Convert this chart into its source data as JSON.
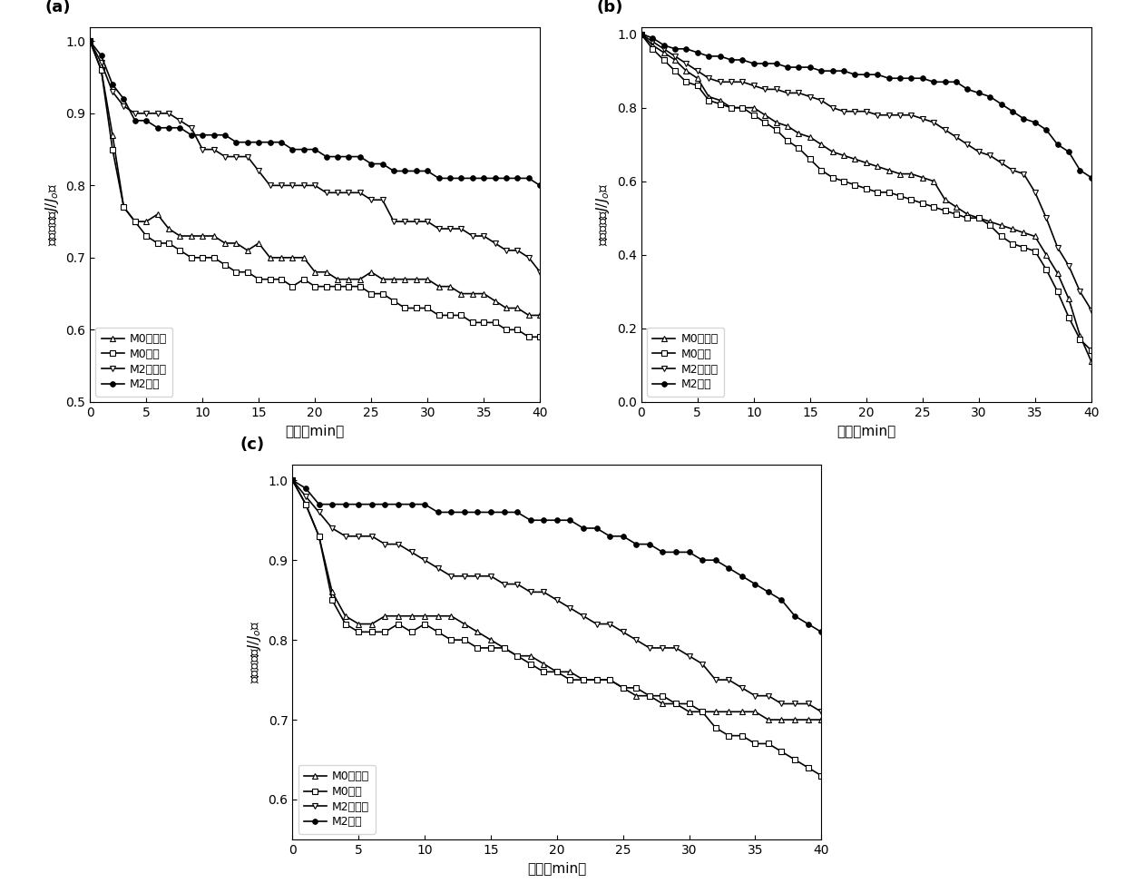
{
  "panels": [
    {
      "label": "(a)",
      "ylim": [
        0.5,
        1.02
      ],
      "yticks": [
        0.5,
        0.6,
        0.7,
        0.8,
        0.9,
        1.0
      ],
      "legend_loc": "lower left",
      "series": {
        "M0无光照": {
          "marker": "^",
          "filled": false,
          "x": [
            0,
            1,
            2,
            3,
            4,
            5,
            6,
            7,
            8,
            9,
            10,
            11,
            12,
            13,
            14,
            15,
            16,
            17,
            18,
            19,
            20,
            21,
            22,
            23,
            24,
            25,
            26,
            27,
            28,
            29,
            30,
            31,
            32,
            33,
            34,
            35,
            36,
            37,
            38,
            39,
            40
          ],
          "y": [
            1.0,
            0.96,
            0.87,
            0.77,
            0.75,
            0.75,
            0.76,
            0.74,
            0.73,
            0.73,
            0.73,
            0.73,
            0.72,
            0.72,
            0.71,
            0.72,
            0.7,
            0.7,
            0.7,
            0.7,
            0.68,
            0.68,
            0.67,
            0.67,
            0.67,
            0.68,
            0.67,
            0.67,
            0.67,
            0.67,
            0.67,
            0.66,
            0.66,
            0.65,
            0.65,
            0.65,
            0.64,
            0.63,
            0.63,
            0.62,
            0.62
          ]
        },
        "M0光照": {
          "marker": "s",
          "filled": false,
          "x": [
            0,
            1,
            2,
            3,
            4,
            5,
            6,
            7,
            8,
            9,
            10,
            11,
            12,
            13,
            14,
            15,
            16,
            17,
            18,
            19,
            20,
            21,
            22,
            23,
            24,
            25,
            26,
            27,
            28,
            29,
            30,
            31,
            32,
            33,
            34,
            35,
            36,
            37,
            38,
            39,
            40
          ],
          "y": [
            1.0,
            0.96,
            0.85,
            0.77,
            0.75,
            0.73,
            0.72,
            0.72,
            0.71,
            0.7,
            0.7,
            0.7,
            0.69,
            0.68,
            0.68,
            0.67,
            0.67,
            0.67,
            0.66,
            0.67,
            0.66,
            0.66,
            0.66,
            0.66,
            0.66,
            0.65,
            0.65,
            0.64,
            0.63,
            0.63,
            0.63,
            0.62,
            0.62,
            0.62,
            0.61,
            0.61,
            0.61,
            0.6,
            0.6,
            0.59,
            0.59
          ]
        },
        "M2无光照": {
          "marker": "v",
          "filled": false,
          "x": [
            0,
            1,
            2,
            3,
            4,
            5,
            6,
            7,
            8,
            9,
            10,
            11,
            12,
            13,
            14,
            15,
            16,
            17,
            18,
            19,
            20,
            21,
            22,
            23,
            24,
            25,
            26,
            27,
            28,
            29,
            30,
            31,
            32,
            33,
            34,
            35,
            36,
            37,
            38,
            39,
            40
          ],
          "y": [
            1.0,
            0.97,
            0.93,
            0.91,
            0.9,
            0.9,
            0.9,
            0.9,
            0.89,
            0.88,
            0.85,
            0.85,
            0.84,
            0.84,
            0.84,
            0.82,
            0.8,
            0.8,
            0.8,
            0.8,
            0.8,
            0.79,
            0.79,
            0.79,
            0.79,
            0.78,
            0.78,
            0.75,
            0.75,
            0.75,
            0.75,
            0.74,
            0.74,
            0.74,
            0.73,
            0.73,
            0.72,
            0.71,
            0.71,
            0.7,
            0.68
          ]
        },
        "M2光照": {
          "marker": "o",
          "filled": true,
          "x": [
            0,
            1,
            2,
            3,
            4,
            5,
            6,
            7,
            8,
            9,
            10,
            11,
            12,
            13,
            14,
            15,
            16,
            17,
            18,
            19,
            20,
            21,
            22,
            23,
            24,
            25,
            26,
            27,
            28,
            29,
            30,
            31,
            32,
            33,
            34,
            35,
            36,
            37,
            38,
            39,
            40
          ],
          "y": [
            1.0,
            0.98,
            0.94,
            0.92,
            0.89,
            0.89,
            0.88,
            0.88,
            0.88,
            0.87,
            0.87,
            0.87,
            0.87,
            0.86,
            0.86,
            0.86,
            0.86,
            0.86,
            0.85,
            0.85,
            0.85,
            0.84,
            0.84,
            0.84,
            0.84,
            0.83,
            0.83,
            0.82,
            0.82,
            0.82,
            0.82,
            0.81,
            0.81,
            0.81,
            0.81,
            0.81,
            0.81,
            0.81,
            0.81,
            0.81,
            0.8
          ]
        }
      }
    },
    {
      "label": "(b)",
      "ylim": [
        0.0,
        1.02
      ],
      "yticks": [
        0.0,
        0.2,
        0.4,
        0.6,
        0.8,
        1.0
      ],
      "legend_loc": "lower left",
      "series": {
        "M0无光照": {
          "marker": "^",
          "filled": false,
          "x": [
            0,
            1,
            2,
            3,
            4,
            5,
            6,
            7,
            8,
            9,
            10,
            11,
            12,
            13,
            14,
            15,
            16,
            17,
            18,
            19,
            20,
            21,
            22,
            23,
            24,
            25,
            26,
            27,
            28,
            29,
            30,
            31,
            32,
            33,
            34,
            35,
            36,
            37,
            38,
            39,
            40
          ],
          "y": [
            1.0,
            0.97,
            0.95,
            0.93,
            0.9,
            0.88,
            0.83,
            0.82,
            0.8,
            0.8,
            0.8,
            0.78,
            0.76,
            0.75,
            0.73,
            0.72,
            0.7,
            0.68,
            0.67,
            0.66,
            0.65,
            0.64,
            0.63,
            0.62,
            0.62,
            0.61,
            0.6,
            0.55,
            0.53,
            0.51,
            0.5,
            0.49,
            0.48,
            0.47,
            0.46,
            0.45,
            0.4,
            0.35,
            0.28,
            0.18,
            0.11
          ]
        },
        "M0光照": {
          "marker": "s",
          "filled": false,
          "x": [
            0,
            1,
            2,
            3,
            4,
            5,
            6,
            7,
            8,
            9,
            10,
            11,
            12,
            13,
            14,
            15,
            16,
            17,
            18,
            19,
            20,
            21,
            22,
            23,
            24,
            25,
            26,
            27,
            28,
            29,
            30,
            31,
            32,
            33,
            34,
            35,
            36,
            37,
            38,
            39,
            40
          ],
          "y": [
            1.0,
            0.96,
            0.93,
            0.9,
            0.87,
            0.86,
            0.82,
            0.81,
            0.8,
            0.8,
            0.78,
            0.76,
            0.74,
            0.71,
            0.69,
            0.66,
            0.63,
            0.61,
            0.6,
            0.59,
            0.58,
            0.57,
            0.57,
            0.56,
            0.55,
            0.54,
            0.53,
            0.52,
            0.51,
            0.5,
            0.5,
            0.48,
            0.45,
            0.43,
            0.42,
            0.41,
            0.36,
            0.3,
            0.23,
            0.17,
            0.14
          ]
        },
        "M2无光照": {
          "marker": "v",
          "filled": false,
          "x": [
            0,
            1,
            2,
            3,
            4,
            5,
            6,
            7,
            8,
            9,
            10,
            11,
            12,
            13,
            14,
            15,
            16,
            17,
            18,
            19,
            20,
            21,
            22,
            23,
            24,
            25,
            26,
            27,
            28,
            29,
            30,
            31,
            32,
            33,
            34,
            35,
            36,
            37,
            38,
            39,
            40
          ],
          "y": [
            1.0,
            0.98,
            0.96,
            0.94,
            0.92,
            0.9,
            0.88,
            0.87,
            0.87,
            0.87,
            0.86,
            0.85,
            0.85,
            0.84,
            0.84,
            0.83,
            0.82,
            0.8,
            0.79,
            0.79,
            0.79,
            0.78,
            0.78,
            0.78,
            0.78,
            0.77,
            0.76,
            0.74,
            0.72,
            0.7,
            0.68,
            0.67,
            0.65,
            0.63,
            0.62,
            0.57,
            0.5,
            0.42,
            0.37,
            0.3,
            0.25
          ]
        },
        "M2光照": {
          "marker": "o",
          "filled": true,
          "x": [
            0,
            1,
            2,
            3,
            4,
            5,
            6,
            7,
            8,
            9,
            10,
            11,
            12,
            13,
            14,
            15,
            16,
            17,
            18,
            19,
            20,
            21,
            22,
            23,
            24,
            25,
            26,
            27,
            28,
            29,
            30,
            31,
            32,
            33,
            34,
            35,
            36,
            37,
            38,
            39,
            40
          ],
          "y": [
            1.0,
            0.99,
            0.97,
            0.96,
            0.96,
            0.95,
            0.94,
            0.94,
            0.93,
            0.93,
            0.92,
            0.92,
            0.92,
            0.91,
            0.91,
            0.91,
            0.9,
            0.9,
            0.9,
            0.89,
            0.89,
            0.89,
            0.88,
            0.88,
            0.88,
            0.88,
            0.87,
            0.87,
            0.87,
            0.85,
            0.84,
            0.83,
            0.81,
            0.79,
            0.77,
            0.76,
            0.74,
            0.7,
            0.68,
            0.63,
            0.61
          ]
        }
      }
    },
    {
      "label": "(c)",
      "ylim": [
        0.55,
        1.02
      ],
      "yticks": [
        0.6,
        0.7,
        0.8,
        0.9,
        1.0
      ],
      "legend_loc": "lower left",
      "series": {
        "M0无光照": {
          "marker": "^",
          "filled": false,
          "x": [
            0,
            1,
            2,
            3,
            4,
            5,
            6,
            7,
            8,
            9,
            10,
            11,
            12,
            13,
            14,
            15,
            16,
            17,
            18,
            19,
            20,
            21,
            22,
            23,
            24,
            25,
            26,
            27,
            28,
            29,
            30,
            31,
            32,
            33,
            34,
            35,
            36,
            37,
            38,
            39,
            40
          ],
          "y": [
            1.0,
            0.97,
            0.93,
            0.86,
            0.83,
            0.82,
            0.82,
            0.83,
            0.83,
            0.83,
            0.83,
            0.83,
            0.83,
            0.82,
            0.81,
            0.8,
            0.79,
            0.78,
            0.78,
            0.77,
            0.76,
            0.76,
            0.75,
            0.75,
            0.75,
            0.74,
            0.73,
            0.73,
            0.72,
            0.72,
            0.71,
            0.71,
            0.71,
            0.71,
            0.71,
            0.71,
            0.7,
            0.7,
            0.7,
            0.7,
            0.7
          ]
        },
        "M0光照": {
          "marker": "s",
          "filled": false,
          "x": [
            0,
            1,
            2,
            3,
            4,
            5,
            6,
            7,
            8,
            9,
            10,
            11,
            12,
            13,
            14,
            15,
            16,
            17,
            18,
            19,
            20,
            21,
            22,
            23,
            24,
            25,
            26,
            27,
            28,
            29,
            30,
            31,
            32,
            33,
            34,
            35,
            36,
            37,
            38,
            39,
            40
          ],
          "y": [
            1.0,
            0.97,
            0.93,
            0.85,
            0.82,
            0.81,
            0.81,
            0.81,
            0.82,
            0.81,
            0.82,
            0.81,
            0.8,
            0.8,
            0.79,
            0.79,
            0.79,
            0.78,
            0.77,
            0.76,
            0.76,
            0.75,
            0.75,
            0.75,
            0.75,
            0.74,
            0.74,
            0.73,
            0.73,
            0.72,
            0.72,
            0.71,
            0.69,
            0.68,
            0.68,
            0.67,
            0.67,
            0.66,
            0.65,
            0.64,
            0.63
          ]
        },
        "M2无光照": {
          "marker": "v",
          "filled": false,
          "x": [
            0,
            1,
            2,
            3,
            4,
            5,
            6,
            7,
            8,
            9,
            10,
            11,
            12,
            13,
            14,
            15,
            16,
            17,
            18,
            19,
            20,
            21,
            22,
            23,
            24,
            25,
            26,
            27,
            28,
            29,
            30,
            31,
            32,
            33,
            34,
            35,
            36,
            37,
            38,
            39,
            40
          ],
          "y": [
            1.0,
            0.98,
            0.96,
            0.94,
            0.93,
            0.93,
            0.93,
            0.92,
            0.92,
            0.91,
            0.9,
            0.89,
            0.88,
            0.88,
            0.88,
            0.88,
            0.87,
            0.87,
            0.86,
            0.86,
            0.85,
            0.84,
            0.83,
            0.82,
            0.82,
            0.81,
            0.8,
            0.79,
            0.79,
            0.79,
            0.78,
            0.77,
            0.75,
            0.75,
            0.74,
            0.73,
            0.73,
            0.72,
            0.72,
            0.72,
            0.71
          ]
        },
        "M2光照": {
          "marker": "o",
          "filled": true,
          "x": [
            0,
            1,
            2,
            3,
            4,
            5,
            6,
            7,
            8,
            9,
            10,
            11,
            12,
            13,
            14,
            15,
            16,
            17,
            18,
            19,
            20,
            21,
            22,
            23,
            24,
            25,
            26,
            27,
            28,
            29,
            30,
            31,
            32,
            33,
            34,
            35,
            36,
            37,
            38,
            39,
            40
          ],
          "y": [
            1.0,
            0.99,
            0.97,
            0.97,
            0.97,
            0.97,
            0.97,
            0.97,
            0.97,
            0.97,
            0.97,
            0.96,
            0.96,
            0.96,
            0.96,
            0.96,
            0.96,
            0.96,
            0.95,
            0.95,
            0.95,
            0.95,
            0.94,
            0.94,
            0.93,
            0.93,
            0.92,
            0.92,
            0.91,
            0.91,
            0.91,
            0.9,
            0.9,
            0.89,
            0.88,
            0.87,
            0.86,
            0.85,
            0.83,
            0.82,
            0.81
          ]
        }
      }
    }
  ],
  "xlim": [
    0,
    40
  ],
  "xticks": [
    0,
    5,
    10,
    15,
    20,
    25,
    30,
    35,
    40
  ],
  "linewidth": 1.2,
  "markersize": 4,
  "markevery": 1
}
